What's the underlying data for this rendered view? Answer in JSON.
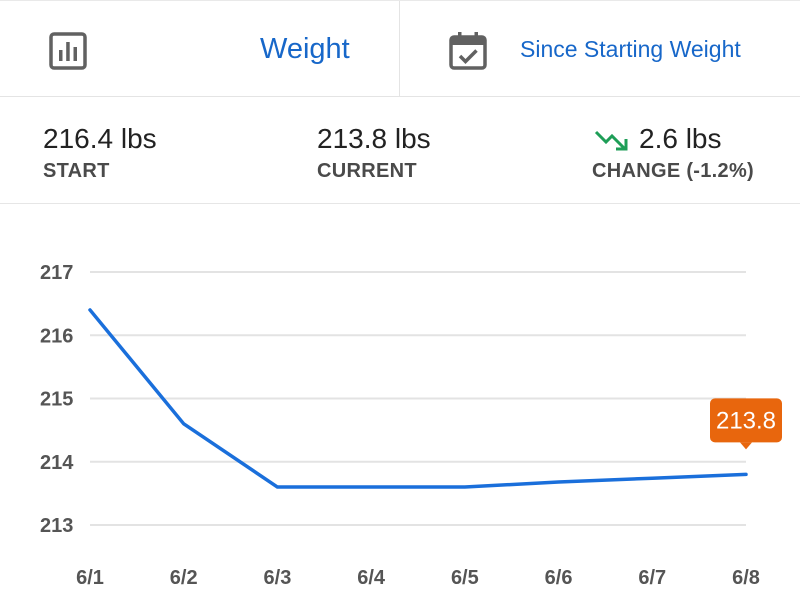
{
  "header": {
    "metric_label": "Weight",
    "range_label": "Since Starting Weight",
    "metric_icon": "bar-chart-icon",
    "range_icon": "calendar-check-icon"
  },
  "stats": {
    "start": {
      "value": "216.4 lbs",
      "label": "START"
    },
    "current": {
      "value": "213.8 lbs",
      "label": "CURRENT"
    },
    "change": {
      "value": "2.6 lbs",
      "label": "CHANGE (-1.2%)",
      "trend_icon": "trending-down-icon"
    }
  },
  "colors": {
    "accent": "#1767c9",
    "line": "#1a6fdb",
    "trend_down": "#1e9e57",
    "tooltip": "#e8660d"
  },
  "chart_data": {
    "type": "line",
    "categories": [
      "6/1",
      "6/2",
      "6/3",
      "6/4",
      "6/5",
      "6/6",
      "6/7",
      "6/8"
    ],
    "values": [
      216.4,
      214.6,
      213.6,
      213.6,
      213.6,
      213.68,
      213.74,
      213.8
    ],
    "ylim": [
      213,
      217
    ],
    "yticks": [
      217,
      216,
      215,
      214,
      213
    ],
    "grid": true,
    "callout": {
      "index": 7,
      "label": "213.8"
    }
  }
}
